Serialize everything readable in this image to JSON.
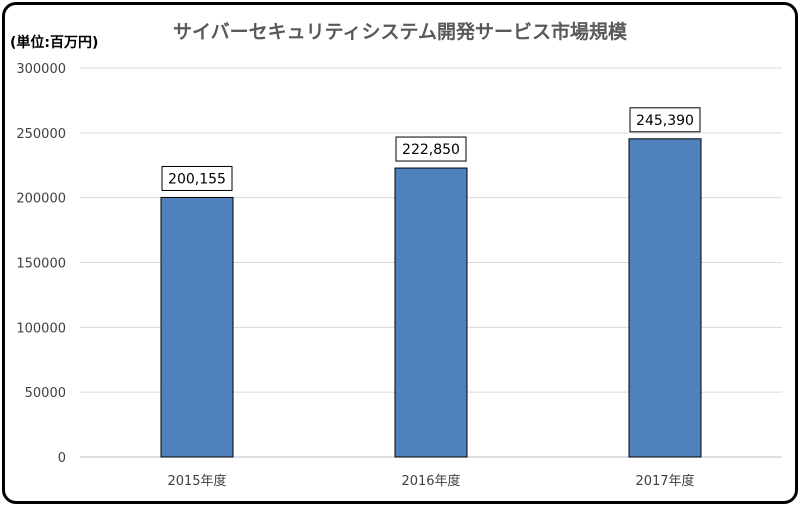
{
  "chart_data": {
    "type": "bar",
    "title": "サイバーセキュリティシステム開発サービス市場規模",
    "unit_label": "(単位:百万円)",
    "categories": [
      "2015年度",
      "2016年度",
      "2017年度"
    ],
    "values": [
      200155,
      222850,
      245390
    ],
    "data_labels": [
      "200,155",
      "222,850",
      "245,390"
    ],
    "ylim": [
      0,
      300000
    ],
    "yticks": [
      0,
      50000,
      100000,
      150000,
      200000,
      250000,
      300000
    ],
    "ytick_labels": [
      "0",
      "50000",
      "100000",
      "150000",
      "200000",
      "250000",
      "300000"
    ],
    "grid": true,
    "legend": "none",
    "bar_color": "#4f81bd",
    "bar_edge_color": "#000000",
    "grid_color": "#d9d9d9"
  }
}
